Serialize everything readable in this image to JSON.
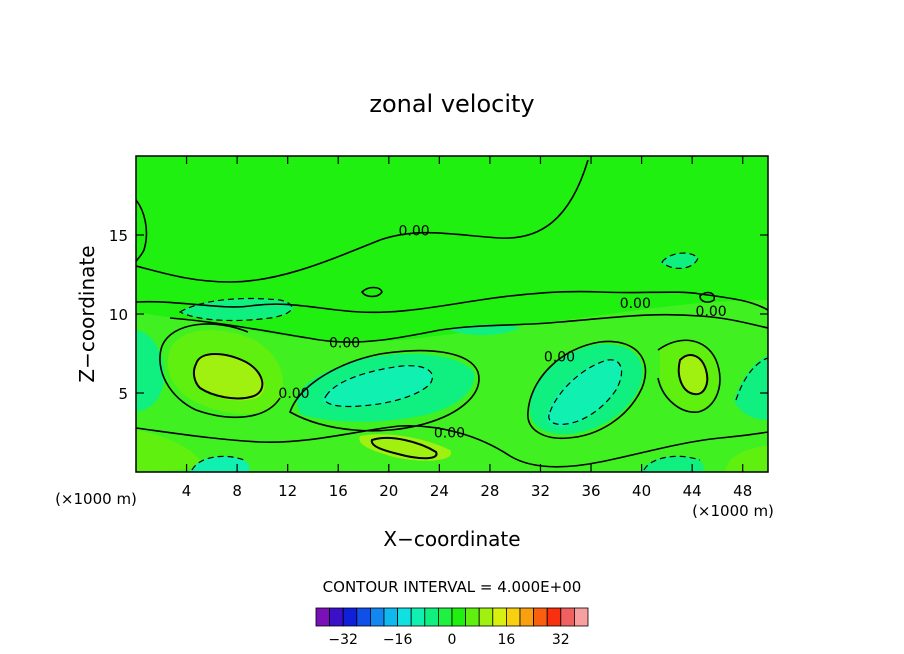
{
  "chart_data": {
    "type": "contour",
    "title": "zonal velocity",
    "xlabel": "X−coordinate",
    "ylabel": "Z−coordinate",
    "x_unit": "(×1000 m)",
    "x_unit_right": "(×1000 m)",
    "xlim": [
      0,
      50
    ],
    "ylim": [
      0,
      20
    ],
    "x_ticks": [
      "4",
      "8",
      "12",
      "16",
      "20",
      "24",
      "28",
      "32",
      "36",
      "40",
      "44",
      "48"
    ],
    "x_tick_values": [
      4,
      8,
      12,
      16,
      20,
      24,
      28,
      32,
      36,
      40,
      44,
      48
    ],
    "y_ticks": [
      "5",
      "10",
      "15"
    ],
    "y_tick_values": [
      5,
      10,
      15
    ],
    "contour_interval_text": "CONTOUR INTERVAL = 4.000E+00",
    "contour_labels": [
      {
        "text": "0.00",
        "x": 22,
        "y": 15.3
      },
      {
        "text": "0.00",
        "x": 16.5,
        "y": 8.2
      },
      {
        "text": "0.00",
        "x": 12.5,
        "y": 5.0
      },
      {
        "text": "0.00",
        "x": 24.8,
        "y": 2.5
      },
      {
        "text": "0.00",
        "x": 33.5,
        "y": 7.3
      },
      {
        "text": "0.00",
        "x": 39.5,
        "y": 10.7
      },
      {
        "text": "0.00",
        "x": 45.5,
        "y": 10.2
      }
    ],
    "colorbar": {
      "ticks": [
        "−32",
        "−16",
        "0",
        "16",
        "32"
      ],
      "tick_values": [
        -32,
        -16,
        0,
        16,
        32
      ],
      "levels": [
        -36,
        -32,
        -28,
        -24,
        -20,
        -16,
        -12,
        -8,
        -4,
        0,
        4,
        8,
        12,
        16,
        20,
        24,
        28,
        32,
        36
      ],
      "colors": [
        "#7a10b8",
        "#3a10c8",
        "#1020d8",
        "#1050e8",
        "#1088f0",
        "#10b8f0",
        "#10e0e0",
        "#10f0b0",
        "#10f080",
        "#20f040",
        "#20f010",
        "#60f010",
        "#a0f010",
        "#d8f010",
        "#f8d010",
        "#f8a010",
        "#f86010",
        "#f83010",
        "#f06060",
        "#f8a0a0"
      ]
    },
    "fields": {
      "background_color": "#20f010",
      "negative_color": "#10f080",
      "strong_negative_color": "#10f0b0",
      "positive_color": "#60f010",
      "strong_positive_color": "#a0f010"
    }
  }
}
